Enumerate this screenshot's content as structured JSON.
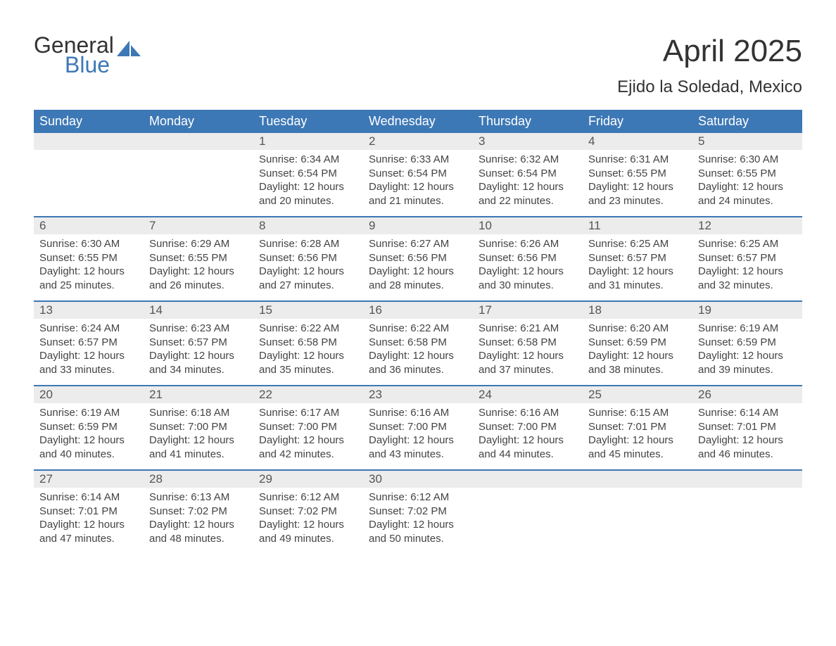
{
  "logo": {
    "word1": "General",
    "word2": "Blue",
    "text_color": "#333333",
    "accent_color": "#3d78b6"
  },
  "title": "April 2025",
  "subtitle": "Ejido la Soledad, Mexico",
  "colors": {
    "header_bg": "#3d78b6",
    "header_text": "#ffffff",
    "daynum_bg": "#ececec",
    "text": "#444444",
    "week_border": "#3d78b6",
    "page_bg": "#ffffff"
  },
  "typography": {
    "title_fontsize": 44,
    "subtitle_fontsize": 24,
    "header_fontsize": 18,
    "body_fontsize": 15,
    "logo_fontsize": 32
  },
  "day_headers": [
    "Sunday",
    "Monday",
    "Tuesday",
    "Wednesday",
    "Thursday",
    "Friday",
    "Saturday"
  ],
  "weeks": [
    [
      {
        "num": "",
        "lines": []
      },
      {
        "num": "",
        "lines": []
      },
      {
        "num": "1",
        "lines": [
          "Sunrise: 6:34 AM",
          "Sunset: 6:54 PM",
          "Daylight: 12 hours and 20 minutes."
        ]
      },
      {
        "num": "2",
        "lines": [
          "Sunrise: 6:33 AM",
          "Sunset: 6:54 PM",
          "Daylight: 12 hours and 21 minutes."
        ]
      },
      {
        "num": "3",
        "lines": [
          "Sunrise: 6:32 AM",
          "Sunset: 6:54 PM",
          "Daylight: 12 hours and 22 minutes."
        ]
      },
      {
        "num": "4",
        "lines": [
          "Sunrise: 6:31 AM",
          "Sunset: 6:55 PM",
          "Daylight: 12 hours and 23 minutes."
        ]
      },
      {
        "num": "5",
        "lines": [
          "Sunrise: 6:30 AM",
          "Sunset: 6:55 PM",
          "Daylight: 12 hours and 24 minutes."
        ]
      }
    ],
    [
      {
        "num": "6",
        "lines": [
          "Sunrise: 6:30 AM",
          "Sunset: 6:55 PM",
          "Daylight: 12 hours and 25 minutes."
        ]
      },
      {
        "num": "7",
        "lines": [
          "Sunrise: 6:29 AM",
          "Sunset: 6:55 PM",
          "Daylight: 12 hours and 26 minutes."
        ]
      },
      {
        "num": "8",
        "lines": [
          "Sunrise: 6:28 AM",
          "Sunset: 6:56 PM",
          "Daylight: 12 hours and 27 minutes."
        ]
      },
      {
        "num": "9",
        "lines": [
          "Sunrise: 6:27 AM",
          "Sunset: 6:56 PM",
          "Daylight: 12 hours and 28 minutes."
        ]
      },
      {
        "num": "10",
        "lines": [
          "Sunrise: 6:26 AM",
          "Sunset: 6:56 PM",
          "Daylight: 12 hours and 30 minutes."
        ]
      },
      {
        "num": "11",
        "lines": [
          "Sunrise: 6:25 AM",
          "Sunset: 6:57 PM",
          "Daylight: 12 hours and 31 minutes."
        ]
      },
      {
        "num": "12",
        "lines": [
          "Sunrise: 6:25 AM",
          "Sunset: 6:57 PM",
          "Daylight: 12 hours and 32 minutes."
        ]
      }
    ],
    [
      {
        "num": "13",
        "lines": [
          "Sunrise: 6:24 AM",
          "Sunset: 6:57 PM",
          "Daylight: 12 hours and 33 minutes."
        ]
      },
      {
        "num": "14",
        "lines": [
          "Sunrise: 6:23 AM",
          "Sunset: 6:57 PM",
          "Daylight: 12 hours and 34 minutes."
        ]
      },
      {
        "num": "15",
        "lines": [
          "Sunrise: 6:22 AM",
          "Sunset: 6:58 PM",
          "Daylight: 12 hours and 35 minutes."
        ]
      },
      {
        "num": "16",
        "lines": [
          "Sunrise: 6:22 AM",
          "Sunset: 6:58 PM",
          "Daylight: 12 hours and 36 minutes."
        ]
      },
      {
        "num": "17",
        "lines": [
          "Sunrise: 6:21 AM",
          "Sunset: 6:58 PM",
          "Daylight: 12 hours and 37 minutes."
        ]
      },
      {
        "num": "18",
        "lines": [
          "Sunrise: 6:20 AM",
          "Sunset: 6:59 PM",
          "Daylight: 12 hours and 38 minutes."
        ]
      },
      {
        "num": "19",
        "lines": [
          "Sunrise: 6:19 AM",
          "Sunset: 6:59 PM",
          "Daylight: 12 hours and 39 minutes."
        ]
      }
    ],
    [
      {
        "num": "20",
        "lines": [
          "Sunrise: 6:19 AM",
          "Sunset: 6:59 PM",
          "Daylight: 12 hours and 40 minutes."
        ]
      },
      {
        "num": "21",
        "lines": [
          "Sunrise: 6:18 AM",
          "Sunset: 7:00 PM",
          "Daylight: 12 hours and 41 minutes."
        ]
      },
      {
        "num": "22",
        "lines": [
          "Sunrise: 6:17 AM",
          "Sunset: 7:00 PM",
          "Daylight: 12 hours and 42 minutes."
        ]
      },
      {
        "num": "23",
        "lines": [
          "Sunrise: 6:16 AM",
          "Sunset: 7:00 PM",
          "Daylight: 12 hours and 43 minutes."
        ]
      },
      {
        "num": "24",
        "lines": [
          "Sunrise: 6:16 AM",
          "Sunset: 7:00 PM",
          "Daylight: 12 hours and 44 minutes."
        ]
      },
      {
        "num": "25",
        "lines": [
          "Sunrise: 6:15 AM",
          "Sunset: 7:01 PM",
          "Daylight: 12 hours and 45 minutes."
        ]
      },
      {
        "num": "26",
        "lines": [
          "Sunrise: 6:14 AM",
          "Sunset: 7:01 PM",
          "Daylight: 12 hours and 46 minutes."
        ]
      }
    ],
    [
      {
        "num": "27",
        "lines": [
          "Sunrise: 6:14 AM",
          "Sunset: 7:01 PM",
          "Daylight: 12 hours and 47 minutes."
        ]
      },
      {
        "num": "28",
        "lines": [
          "Sunrise: 6:13 AM",
          "Sunset: 7:02 PM",
          "Daylight: 12 hours and 48 minutes."
        ]
      },
      {
        "num": "29",
        "lines": [
          "Sunrise: 6:12 AM",
          "Sunset: 7:02 PM",
          "Daylight: 12 hours and 49 minutes."
        ]
      },
      {
        "num": "30",
        "lines": [
          "Sunrise: 6:12 AM",
          "Sunset: 7:02 PM",
          "Daylight: 12 hours and 50 minutes."
        ]
      },
      {
        "num": "",
        "lines": []
      },
      {
        "num": "",
        "lines": []
      },
      {
        "num": "",
        "lines": []
      }
    ]
  ]
}
